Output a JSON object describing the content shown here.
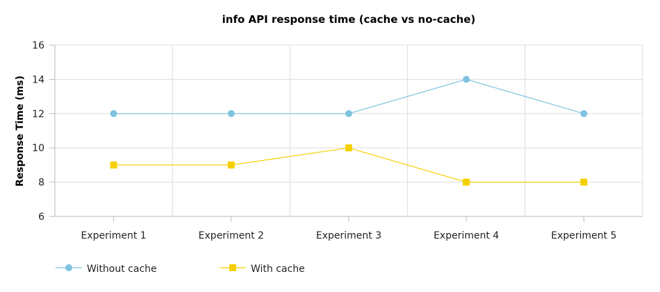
{
  "chart_data": {
    "type": "line",
    "title": "info API response time (cache vs no-cache)",
    "xlabel": "",
    "ylabel": "Response Time (ms)",
    "categories": [
      "Experiment 1",
      "Experiment 2",
      "Experiment 3",
      "Experiment 4",
      "Experiment 5"
    ],
    "ylim": [
      6,
      16
    ],
    "yticks": [
      6,
      8,
      10,
      12,
      14,
      16
    ],
    "grid": true,
    "legend_position": "bottom-left",
    "series": [
      {
        "name": "Without cache",
        "values": [
          12,
          12,
          12,
          14,
          12
        ],
        "color": "#7ec3df",
        "marker": "circle"
      },
      {
        "name": "With cache",
        "values": [
          9,
          9,
          10,
          8,
          8
        ],
        "color": "#f5d000",
        "marker": "square"
      }
    ]
  }
}
